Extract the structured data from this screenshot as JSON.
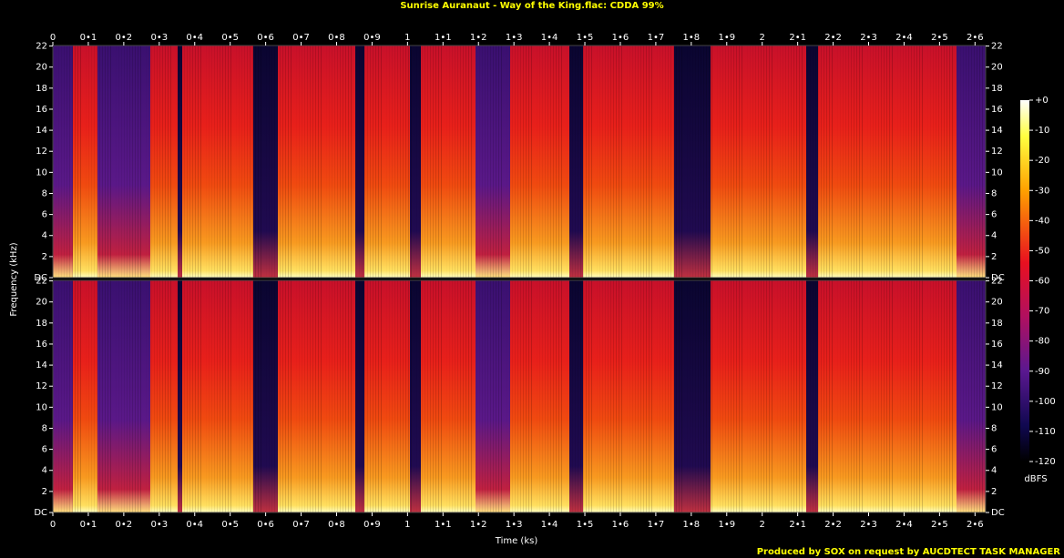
{
  "chart_data": {
    "type": "spectrogram",
    "title": "Sunrise Auranaut - Way of the King.flac: CDDA 99%",
    "x_label": "Time (ks)",
    "y_label": "Frequency (kHz)",
    "footer": "Produced by SOX on request by AUCDTECT TASK MANAGER",
    "xlim": [
      0,
      2.63
    ],
    "xticks": [
      0,
      {
        "value": 0.1,
        "label": "0•1"
      },
      {
        "value": 0.2,
        "label": "0•2"
      },
      {
        "value": 0.3,
        "label": "0•3"
      },
      {
        "value": 0.4,
        "label": "0•4"
      },
      {
        "value": 0.5,
        "label": "0•5"
      },
      {
        "value": 0.6,
        "label": "0•6"
      },
      {
        "value": 0.7,
        "label": "0•7"
      },
      {
        "value": 0.8,
        "label": "0•8"
      },
      {
        "value": 0.9,
        "label": "0•9"
      },
      1,
      {
        "value": 1.1,
        "label": "1•1"
      },
      {
        "value": 1.2,
        "label": "1•2"
      },
      {
        "value": 1.3,
        "label": "1•3"
      },
      {
        "value": 1.4,
        "label": "1•4"
      },
      {
        "value": 1.5,
        "label": "1•5"
      },
      {
        "value": 1.6,
        "label": "1•6"
      },
      {
        "value": 1.7,
        "label": "1•7"
      },
      {
        "value": 1.8,
        "label": "1•8"
      },
      {
        "value": 1.9,
        "label": "1•9"
      },
      2,
      {
        "value": 2.1,
        "label": "2•1"
      },
      {
        "value": 2.2,
        "label": "2•2"
      },
      {
        "value": 2.3,
        "label": "2•3"
      },
      {
        "value": 2.4,
        "label": "2•4"
      },
      {
        "value": 2.5,
        "label": "2•5"
      },
      {
        "value": 2.6,
        "label": "2•6"
      }
    ],
    "ylim": [
      0,
      22.05
    ],
    "yticks": [
      {
        "value": 0,
        "label": "DC"
      },
      2,
      4,
      6,
      8,
      10,
      12,
      14,
      16,
      18,
      20,
      22
    ],
    "colorbar": {
      "label": "dBFS",
      "lim": [
        -120,
        0
      ],
      "ticks": [
        {
          "value": 0,
          "label": "+0"
        },
        -10,
        -20,
        -30,
        -40,
        -50,
        -60,
        -70,
        -80,
        -90,
        -100,
        -110,
        -120
      ]
    }
  }
}
